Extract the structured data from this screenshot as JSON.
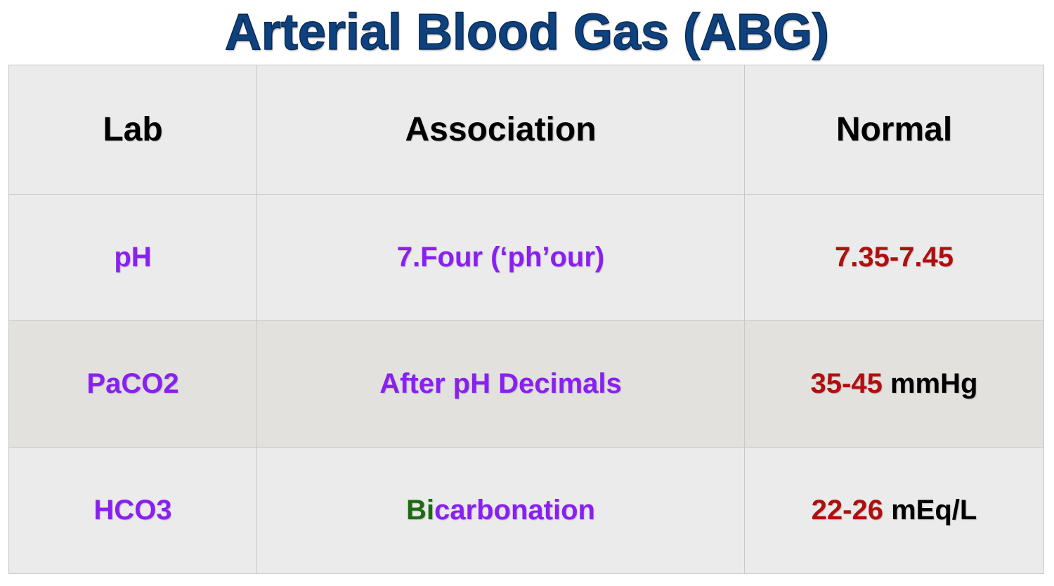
{
  "title": {
    "text": "Arterial Blood Gas (ABG)",
    "color": "#0e427e"
  },
  "table": {
    "header": [
      "Lab",
      "Association",
      "Normal"
    ],
    "header_color": "#000000",
    "rows": [
      {
        "background": "#ebebeb",
        "cells": [
          [
            {
              "text": "pH",
              "color": "#8a1ff2"
            }
          ],
          [
            {
              "text": "7.Four (‘ph’our)",
              "color": "#8a1ff2"
            }
          ],
          [
            {
              "text": "7.35-7.45",
              "color": "#b00f0f"
            }
          ]
        ]
      },
      {
        "background": "#e2e1dd",
        "cells": [
          [
            {
              "text": "PaCO2",
              "color": "#8a1ff2"
            }
          ],
          [
            {
              "text": "After pH Decimals",
              "color": "#8a1ff2"
            }
          ],
          [
            {
              "text": "35-45",
              "color": "#b00f0f"
            },
            {
              "text": " mmHg",
              "color": "#000000"
            }
          ]
        ]
      },
      {
        "background": "#ebebeb",
        "cells": [
          [
            {
              "text": "HCO3",
              "color": "#8a1ff2"
            }
          ],
          [
            {
              "text": "Bi",
              "color": "#1d6b15"
            },
            {
              "text": "carbonation",
              "color": "#8a1ff2"
            }
          ],
          [
            {
              "text": "22-26",
              "color": "#b00f0f"
            },
            {
              "text": " mEq/L",
              "color": "#000000"
            }
          ]
        ]
      }
    ]
  }
}
